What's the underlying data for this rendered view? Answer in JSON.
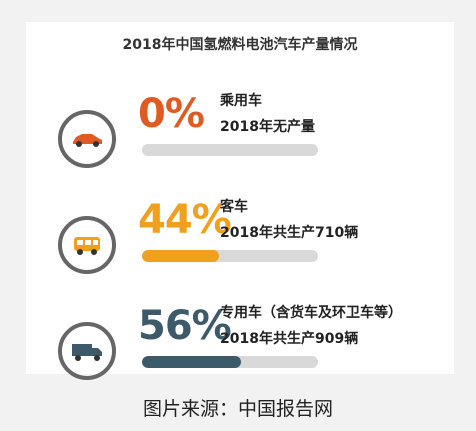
{
  "chart_data": {
    "type": "bar",
    "title": "2018年中国氢燃料电池汽车产量情况",
    "categories": [
      "乘用车",
      "客车",
      "专用车（含货车及环卫车等）"
    ],
    "values": [
      0,
      44,
      56
    ],
    "value_labels": [
      "0%",
      "44%",
      "56%"
    ],
    "descriptions": [
      "2018年无产量",
      "2018年共生产710辆",
      "2018年共生产909辆"
    ],
    "ylim": [
      0,
      100
    ],
    "colors": [
      "#e05a23",
      "#f0a01d",
      "#3d5a6b"
    ],
    "icons": [
      "car-icon",
      "bus-icon",
      "truck-icon"
    ]
  },
  "source": "图片来源：中国报告网"
}
